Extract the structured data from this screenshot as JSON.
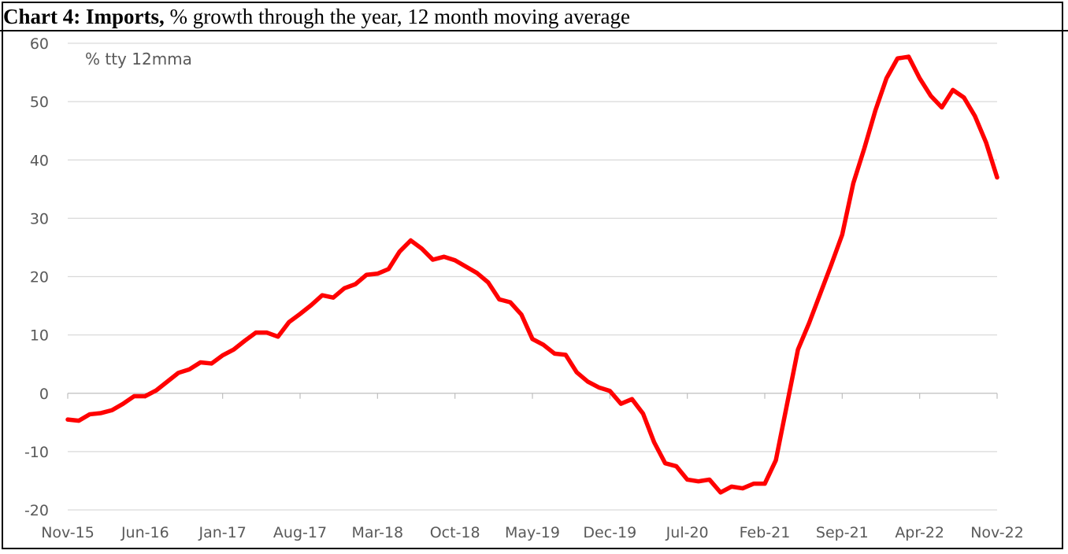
{
  "title": {
    "bold": "Chart 4: Imports,",
    "rest": " % growth through the year, 12 month moving average"
  },
  "chart_data": {
    "type": "line",
    "title": "Chart 4: Imports, % growth through the year, 12 month moving average",
    "annotation": "% tty 12mma",
    "ylim": [
      -20,
      60
    ],
    "yticks": [
      60,
      50,
      40,
      30,
      20,
      10,
      0,
      -10,
      -20
    ],
    "ytick_labels": [
      "60",
      "50",
      "40",
      "30",
      "20",
      "10",
      "0",
      "-10",
      "-20"
    ],
    "xtick_labels": [
      "Nov-15",
      "Jun-16",
      "Jan-17",
      "Aug-17",
      "Mar-18",
      "Oct-18",
      "May-19",
      "Dec-19",
      "Jul-20",
      "Feb-21",
      "Sep-21",
      "Apr-22",
      "Nov-22"
    ],
    "grid": true,
    "colors": {
      "line": "#ff0000",
      "grid": "#d9d9d9",
      "axis_text": "#595959"
    },
    "series": [
      {
        "x": [
          "Nov-15",
          "Dec-15",
          "Jan-16",
          "Feb-16",
          "Mar-16",
          "Apr-16",
          "May-16",
          "Jun-16",
          "Jul-16",
          "Aug-16",
          "Sep-16",
          "Oct-16",
          "Nov-16",
          "Dec-16",
          "Jan-17",
          "Feb-17",
          "Mar-17",
          "Apr-17",
          "May-17",
          "Jun-17",
          "Jul-17",
          "Aug-17",
          "Sep-17",
          "Oct-17",
          "Nov-17",
          "Dec-17",
          "Jan-18",
          "Feb-18",
          "Mar-18",
          "Apr-18",
          "May-18",
          "Jun-18",
          "Jul-18",
          "Aug-18",
          "Sep-18",
          "Oct-18",
          "Nov-18",
          "Dec-18",
          "Jan-19",
          "Feb-19",
          "Mar-19",
          "Apr-19",
          "May-19",
          "Jun-19",
          "Jul-19",
          "Aug-19",
          "Sep-19",
          "Oct-19",
          "Nov-19",
          "Dec-19",
          "Jan-20",
          "Feb-20",
          "Mar-20",
          "Apr-20",
          "May-20",
          "Jun-20",
          "Jul-20",
          "Aug-20",
          "Sep-20",
          "Oct-20",
          "Nov-20",
          "Dec-20",
          "Jan-21",
          "Feb-21",
          "Mar-21",
          "Apr-21",
          "May-21",
          "Jun-21",
          "Jul-21",
          "Aug-21",
          "Sep-21",
          "Oct-21",
          "Nov-21",
          "Dec-21",
          "Jan-22",
          "Feb-22",
          "Mar-22",
          "Apr-22",
          "May-22",
          "Jun-22",
          "Jul-22",
          "Aug-22",
          "Sep-22",
          "Oct-22",
          "Nov-22"
        ],
        "values": [
          -4.5,
          -4.7,
          -3.6,
          -3.4,
          -2.9,
          -1.8,
          -0.5,
          -0.5,
          0.5,
          2.0,
          3.5,
          4.1,
          5.3,
          5.1,
          6.5,
          7.5,
          9.0,
          10.4,
          10.4,
          9.7,
          12.2,
          13.6,
          15.1,
          16.8,
          16.4,
          18.0,
          18.7,
          20.3,
          20.5,
          21.3,
          24.3,
          26.2,
          24.8,
          22.9,
          23.4,
          22.8,
          21.7,
          20.6,
          19.0,
          16.1,
          15.6,
          13.5,
          9.3,
          8.3,
          6.8,
          6.6,
          3.6,
          2.0,
          1.0,
          0.4,
          -1.8,
          -1.0,
          -3.5,
          -8.4,
          -12.0,
          -12.5,
          -14.8,
          -15.1,
          -14.8,
          -17.0,
          -16.0,
          -16.3,
          -15.5,
          -15.5,
          -11.5,
          -2.0,
          7.5,
          12.0,
          17.0,
          22.0,
          27.2,
          36.0,
          42.0,
          48.5,
          54.0,
          57.4,
          57.7,
          54.0,
          51.0,
          49.0,
          52.0,
          50.7,
          47.5,
          43.0,
          37.0
        ]
      }
    ]
  }
}
